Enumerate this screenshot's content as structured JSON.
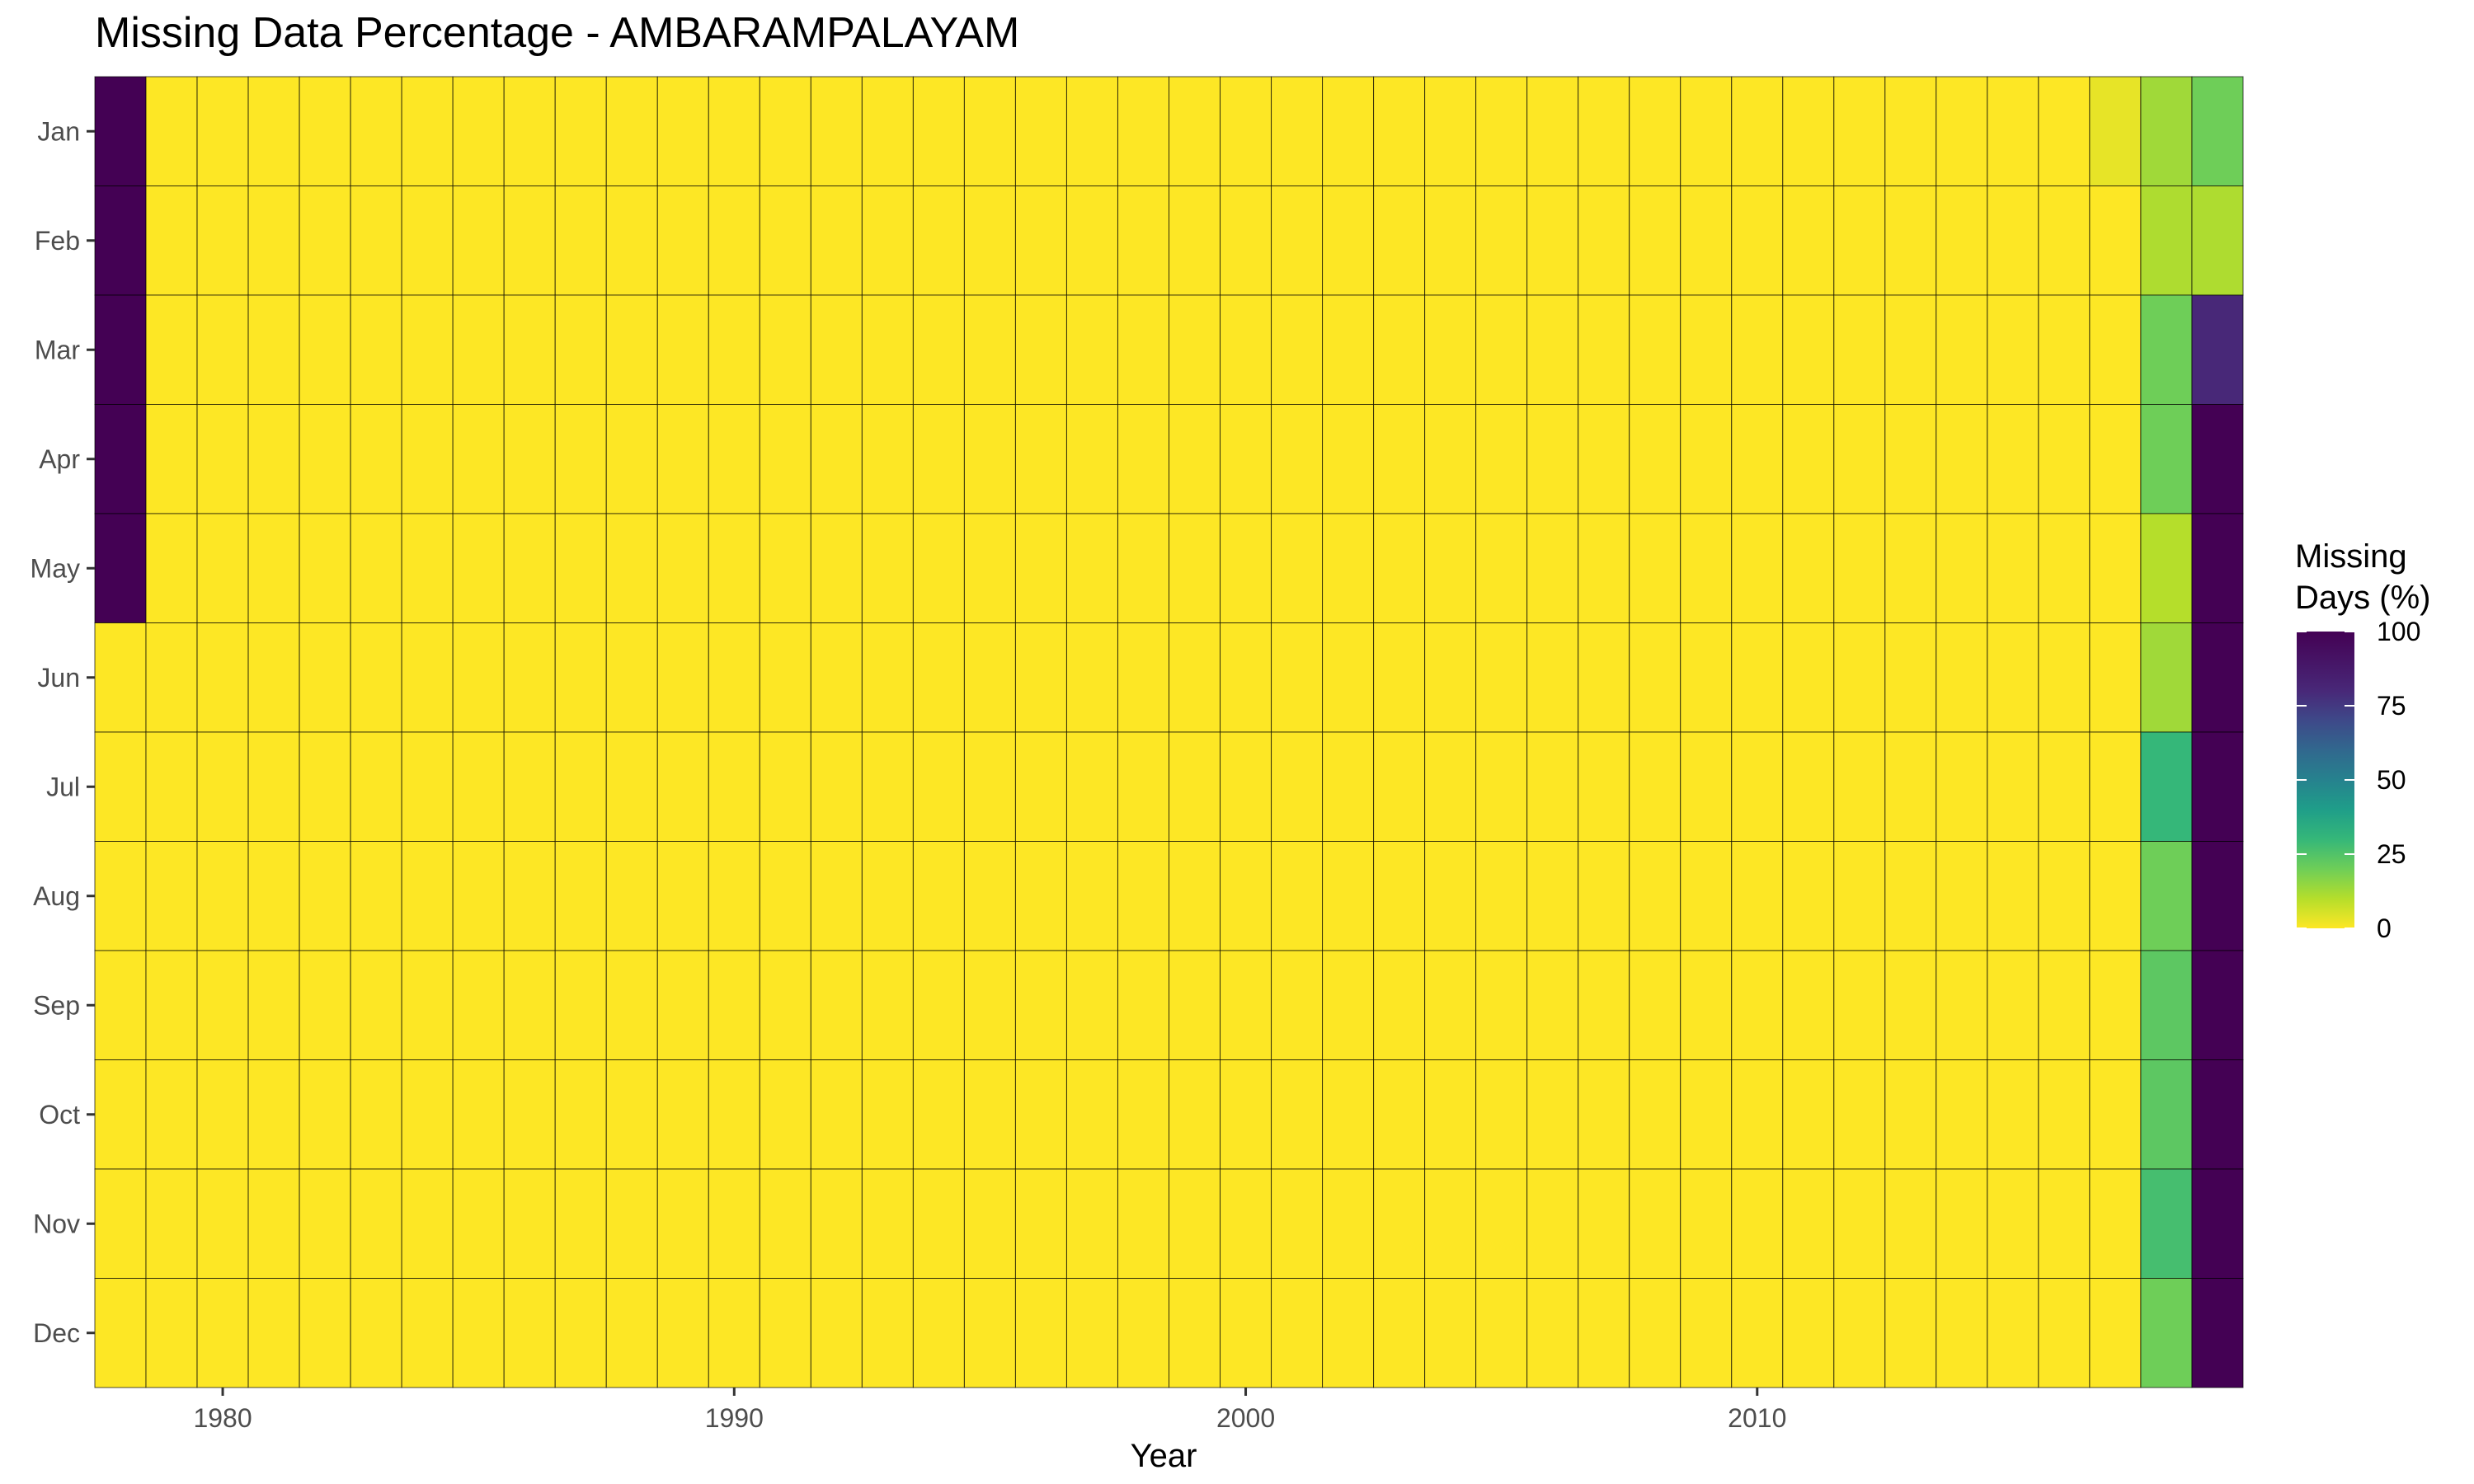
{
  "chart_data": {
    "type": "heatmap",
    "title": "Missing Data Percentage - AMBARAMPALAYAM",
    "xlabel": "Year",
    "ylabel": "",
    "x_start_year": 1978,
    "x_end_year": 2019,
    "x_ticks": [
      1980,
      1990,
      2000,
      2010
    ],
    "months": [
      "Jan",
      "Feb",
      "Mar",
      "Apr",
      "May",
      "Jun",
      "Jul",
      "Aug",
      "Sep",
      "Oct",
      "Nov",
      "Dec"
    ],
    "default_value": 0,
    "nonzero_cells": [
      {
        "year": 1978,
        "month": "Jan",
        "value": 100
      },
      {
        "year": 1978,
        "month": "Feb",
        "value": 100
      },
      {
        "year": 1978,
        "month": "Mar",
        "value": 100
      },
      {
        "year": 1978,
        "month": "Apr",
        "value": 100
      },
      {
        "year": 1978,
        "month": "May",
        "value": 100
      },
      {
        "year": 2017,
        "month": "Jan",
        "value": 3
      },
      {
        "year": 2018,
        "month": "Jan",
        "value": 13
      },
      {
        "year": 2018,
        "month": "Feb",
        "value": 11
      },
      {
        "year": 2018,
        "month": "Mar",
        "value": 20
      },
      {
        "year": 2018,
        "month": "Apr",
        "value": 20
      },
      {
        "year": 2018,
        "month": "May",
        "value": 10
      },
      {
        "year": 2018,
        "month": "Jun",
        "value": 13
      },
      {
        "year": 2018,
        "month": "Jul",
        "value": 30
      },
      {
        "year": 2018,
        "month": "Aug",
        "value": 20
      },
      {
        "year": 2018,
        "month": "Sep",
        "value": 23
      },
      {
        "year": 2018,
        "month": "Oct",
        "value": 23
      },
      {
        "year": 2018,
        "month": "Nov",
        "value": 27
      },
      {
        "year": 2018,
        "month": "Dec",
        "value": 20
      },
      {
        "year": 2019,
        "month": "Jan",
        "value": 20
      },
      {
        "year": 2019,
        "month": "Feb",
        "value": 11
      },
      {
        "year": 2019,
        "month": "Mar",
        "value": 80
      },
      {
        "year": 2019,
        "month": "Apr",
        "value": 100
      },
      {
        "year": 2019,
        "month": "May",
        "value": 100
      },
      {
        "year": 2019,
        "month": "Jun",
        "value": 100
      },
      {
        "year": 2019,
        "month": "Jul",
        "value": 100
      },
      {
        "year": 2019,
        "month": "Aug",
        "value": 100
      },
      {
        "year": 2019,
        "month": "Sep",
        "value": 100
      },
      {
        "year": 2019,
        "month": "Oct",
        "value": 100
      },
      {
        "year": 2019,
        "month": "Nov",
        "value": 100
      },
      {
        "year": 2019,
        "month": "Dec",
        "value": 100
      }
    ],
    "color_scale": {
      "name": "viridis (reversed)",
      "min": 0,
      "max": 100,
      "low_color": "#FDE725",
      "high_color": "#440154"
    },
    "legend": {
      "title_line1": "Missing",
      "title_line2": "Days (%)",
      "ticks": [
        100,
        75,
        50,
        25,
        0
      ],
      "placement": "right"
    },
    "grid": false
  }
}
